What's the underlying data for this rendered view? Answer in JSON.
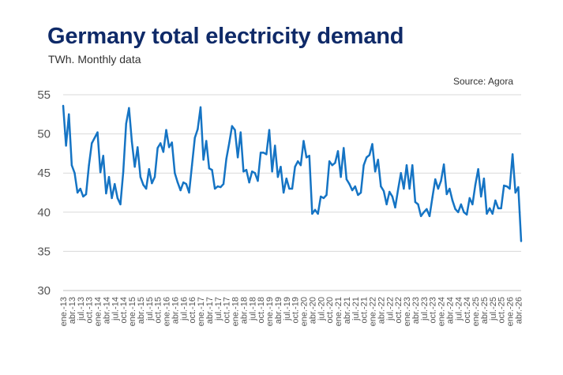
{
  "title": "Germany total electricity demand",
  "subtitle": "TWh. Monthly data",
  "source": "Source: Agora",
  "colors": {
    "title": "#0f2a68",
    "line": "#1574c4",
    "grid": "#d9d9d9",
    "axis_text": "#555555"
  },
  "chart_data": {
    "type": "line",
    "title": "Germany total electricity demand",
    "subtitle": "TWh. Monthly data",
    "xlabel": "",
    "ylabel": "",
    "ylim": [
      30,
      55
    ],
    "yticks": [
      30,
      35,
      40,
      45,
      50,
      55
    ],
    "grid": true,
    "legend": "none",
    "x_tick_labels": [
      "ene.-13",
      "abr.-13",
      "jul.-13",
      "oct.-13",
      "ene.-14",
      "abr.-14",
      "jul.-14",
      "oct.-14",
      "ene.-15",
      "abr.-15",
      "jul.-15",
      "oct.-15",
      "ene.-16",
      "abr.-16",
      "jul.-16",
      "oct.-16",
      "ene.-17",
      "abr.-17",
      "jul.-17",
      "oct.-17",
      "ene.-18",
      "abr.-18",
      "jul.-18",
      "oct.-18",
      "ene.-19",
      "abr.-19",
      "jul.-19",
      "oct.-19",
      "ene.-20",
      "abr.-20",
      "jul.-20",
      "oct.-20",
      "ene.-21",
      "abr.-21",
      "jul.-21",
      "oct.-21",
      "ene.-22",
      "abr.-22",
      "jul.-22",
      "oct.-22",
      "ene.-23",
      "abr.-23",
      "jul.-23",
      "oct.-23",
      "ene.-24",
      "abr.-24",
      "jul.-24",
      "oct.-24",
      "ene.-25",
      "abr.-25",
      "jul.-25",
      "oct.-25",
      "ene.-26",
      "abr.-26"
    ],
    "series": [
      {
        "values": [
          53.6,
          48.5,
          52.5,
          46.0,
          45.0,
          42.5,
          43.0,
          42.0,
          42.3,
          46.0,
          48.8,
          49.5,
          50.2,
          45.1,
          47.2,
          42.4,
          44.5,
          41.8,
          43.6,
          41.8,
          41.0,
          45.2,
          51.3,
          53.3,
          49.0,
          45.8,
          48.3,
          44.5,
          43.5,
          43.0,
          45.5,
          43.7,
          44.5,
          48.2,
          48.8,
          47.7,
          50.5,
          48.3,
          48.9,
          45.0,
          43.8,
          42.8,
          43.8,
          43.6,
          42.5,
          46.0,
          49.5,
          50.6,
          53.4,
          46.7,
          49.1,
          45.6,
          45.4,
          43.0,
          43.3,
          43.2,
          43.6,
          46.8,
          48.8,
          51.0,
          50.5,
          47.0,
          50.2,
          45.2,
          45.4,
          43.8,
          45.2,
          45.0,
          44.0,
          47.6,
          47.6,
          47.4,
          50.5,
          45.2,
          48.5,
          44.5,
          45.8,
          42.5,
          44.3,
          43.0,
          43.0,
          45.8,
          46.5,
          46.0,
          49.1,
          47.0,
          47.2,
          39.8,
          40.3,
          39.8,
          42.0,
          41.8,
          42.2,
          46.5,
          46.0,
          46.3,
          47.8,
          44.5,
          48.2,
          44.2,
          43.6,
          42.8,
          43.3,
          42.2,
          42.5,
          46.0,
          47.0,
          47.3,
          48.7,
          45.2,
          46.7,
          43.3,
          42.7,
          41.0,
          42.6,
          42.0,
          40.6,
          42.9,
          45.0,
          43.0,
          46.0,
          43.0,
          46.0,
          41.3,
          41.0,
          39.5,
          40.0,
          40.4,
          39.5,
          41.9,
          44.2,
          43.0,
          44.0,
          46.1,
          42.3,
          43.0,
          41.5,
          40.4,
          40.0,
          41.0,
          40.0,
          39.7,
          41.8,
          41.0,
          43.5,
          45.5,
          42.0,
          44.3,
          39.8,
          40.5,
          39.8,
          41.5,
          40.5,
          40.5,
          43.4,
          43.3,
          43.0,
          47.4,
          42.5,
          43.2,
          36.3
        ]
      }
    ]
  }
}
